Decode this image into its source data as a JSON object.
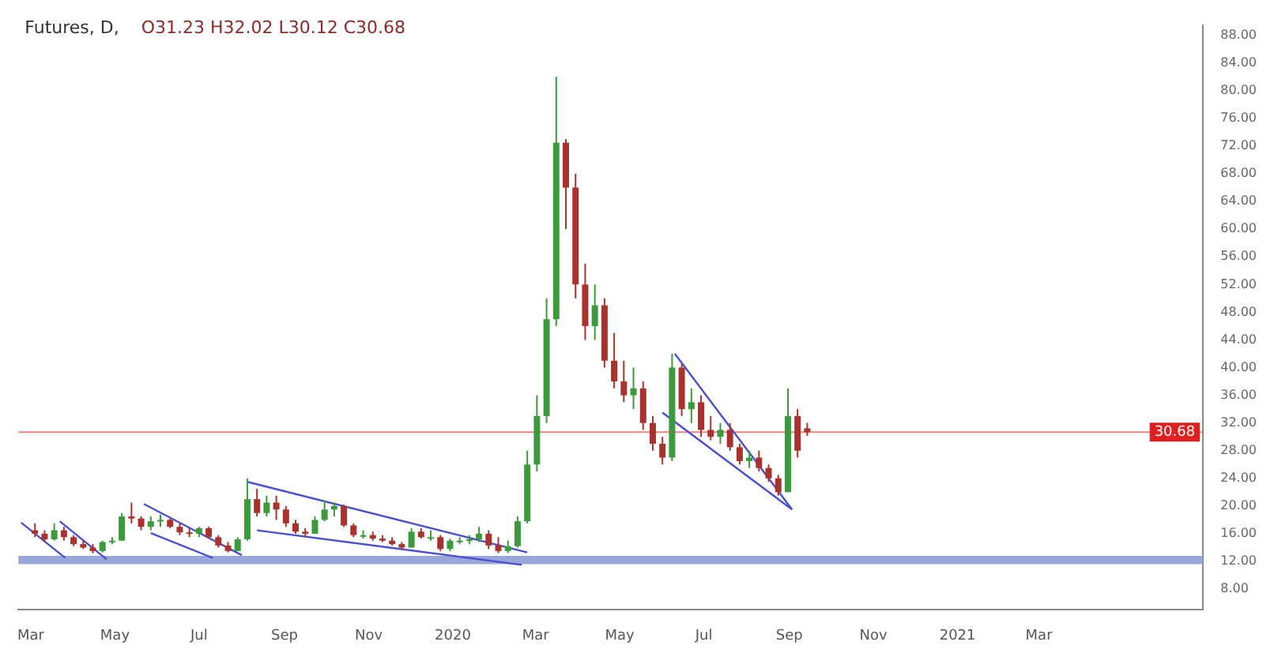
{
  "chart_data": {
    "type": "candlestick",
    "title": "Futures, D,",
    "annotations": [
      "O31.23 H32.02 L30.12 C30.68"
    ],
    "x": [
      "2019-03-04",
      "2019-03-11",
      "2019-03-18",
      "2019-03-25",
      "2019-04-01",
      "2019-04-08",
      "2019-04-15",
      "2019-04-22",
      "2019-04-29",
      "2019-05-06",
      "2019-05-13",
      "2019-05-20",
      "2019-05-27",
      "2019-06-03",
      "2019-06-10",
      "2019-06-17",
      "2019-06-24",
      "2019-07-01",
      "2019-07-08",
      "2019-07-15",
      "2019-07-22",
      "2019-07-29",
      "2019-08-05",
      "2019-08-12",
      "2019-08-19",
      "2019-08-26",
      "2019-09-02",
      "2019-09-09",
      "2019-09-16",
      "2019-09-23",
      "2019-09-30",
      "2019-10-07",
      "2019-10-14",
      "2019-10-21",
      "2019-10-28",
      "2019-11-04",
      "2019-11-11",
      "2019-11-18",
      "2019-11-25",
      "2019-12-02",
      "2019-12-09",
      "2019-12-16",
      "2019-12-23",
      "2019-12-30",
      "2020-01-06",
      "2020-01-13",
      "2020-01-20",
      "2020-01-27",
      "2020-02-03",
      "2020-02-10",
      "2020-02-17",
      "2020-02-24",
      "2020-03-02",
      "2020-03-09",
      "2020-03-16",
      "2020-03-23",
      "2020-03-30",
      "2020-04-06",
      "2020-04-13",
      "2020-04-20",
      "2020-04-27",
      "2020-05-04",
      "2020-05-11",
      "2020-05-18",
      "2020-05-25",
      "2020-06-01",
      "2020-06-08",
      "2020-06-15",
      "2020-06-22",
      "2020-06-29",
      "2020-07-06",
      "2020-07-13",
      "2020-07-20",
      "2020-07-27",
      "2020-08-03",
      "2020-08-10",
      "2020-08-17",
      "2020-08-24",
      "2020-08-31",
      "2020-09-07",
      "2020-09-14"
    ],
    "ohlc": [
      [
        16.5,
        17.5,
        15.5,
        16
      ],
      [
        16,
        16.5,
        14.8,
        15.2
      ],
      [
        15.2,
        17.5,
        15,
        16.5
      ],
      [
        16.5,
        17,
        15,
        15.5
      ],
      [
        15.5,
        15.8,
        14.2,
        14.5
      ],
      [
        14.5,
        15,
        13.8,
        14
      ],
      [
        14,
        14.5,
        13.2,
        13.5
      ],
      [
        13.5,
        15,
        13.3,
        14.8
      ],
      [
        14.8,
        15.5,
        14.5,
        15
      ],
      [
        15,
        19,
        15,
        18.5
      ],
      [
        18.5,
        20.5,
        17.5,
        18.2
      ],
      [
        18.2,
        18.5,
        16.5,
        17
      ],
      [
        17,
        18.5,
        16.5,
        17.8
      ],
      [
        17.8,
        18.8,
        17,
        18
      ],
      [
        18,
        18.2,
        16.8,
        17
      ],
      [
        17,
        17.5,
        15.8,
        16.2
      ],
      [
        16.2,
        16.8,
        15.5,
        16
      ],
      [
        16,
        17,
        15.5,
        16.8
      ],
      [
        16.8,
        17,
        15.3,
        15.5
      ],
      [
        15.5,
        15.8,
        14,
        14.3
      ],
      [
        14.3,
        14.8,
        13.3,
        13.5
      ],
      [
        13.5,
        15.5,
        13.5,
        15.2
      ],
      [
        15.2,
        24,
        15,
        21
      ],
      [
        21,
        22.5,
        18.5,
        19
      ],
      [
        19,
        21.5,
        18.5,
        20.5
      ],
      [
        20.5,
        21.5,
        18,
        19.5
      ],
      [
        19.5,
        20,
        17,
        17.5
      ],
      [
        17.5,
        18,
        16,
        16.3
      ],
      [
        16.3,
        16.8,
        15.5,
        16
      ],
      [
        16,
        18.5,
        16,
        18
      ],
      [
        18,
        20.8,
        17.8,
        19.5
      ],
      [
        19.5,
        20.5,
        18.5,
        20
      ],
      [
        20,
        20.2,
        17,
        17.2
      ],
      [
        17.2,
        17.5,
        15.5,
        15.8
      ],
      [
        15.8,
        16.5,
        15.3,
        15.8
      ],
      [
        15.8,
        16.3,
        15,
        15.3
      ],
      [
        15.3,
        15.8,
        14.8,
        15
      ],
      [
        15,
        15.5,
        14.3,
        14.5
      ],
      [
        14.5,
        14.8,
        13.8,
        14
      ],
      [
        14,
        16.8,
        14,
        16.3
      ],
      [
        16.3,
        16.8,
        15.3,
        15.5
      ],
      [
        15.5,
        16.5,
        15,
        15.5
      ],
      [
        15.5,
        15.8,
        13.5,
        13.8
      ],
      [
        13.8,
        15.3,
        13.5,
        15
      ],
      [
        15,
        15.5,
        14.5,
        15
      ],
      [
        15,
        15.8,
        14.5,
        15.2
      ],
      [
        15.2,
        17,
        14.8,
        16
      ],
      [
        16,
        16.5,
        13.8,
        14.3
      ],
      [
        14.3,
        15.5,
        13.2,
        13.5
      ],
      [
        13.5,
        15,
        13.2,
        14.2
      ],
      [
        14.2,
        18.5,
        14,
        17.8
      ],
      [
        17.8,
        28,
        17.5,
        26
      ],
      [
        26,
        36,
        25,
        33
      ],
      [
        33,
        50,
        32,
        47
      ],
      [
        47,
        82,
        46,
        72.5
      ],
      [
        72.5,
        73,
        60,
        66
      ],
      [
        66,
        68,
        50,
        52
      ],
      [
        52,
        55,
        44,
        46
      ],
      [
        46,
        52,
        44,
        49
      ],
      [
        49,
        50,
        40,
        41
      ],
      [
        41,
        45,
        37,
        38
      ],
      [
        38,
        41,
        35,
        36
      ],
      [
        36,
        40,
        34,
        37
      ],
      [
        37,
        38,
        31,
        32
      ],
      [
        32,
        33,
        28,
        29
      ],
      [
        29,
        30,
        26,
        27
      ],
      [
        27,
        42,
        26.5,
        40
      ],
      [
        40,
        40.5,
        33,
        34
      ],
      [
        34,
        37,
        32,
        35
      ],
      [
        35,
        36,
        30,
        31
      ],
      [
        31,
        33,
        29.5,
        30
      ],
      [
        30,
        32,
        29,
        31
      ],
      [
        31,
        32,
        28,
        28.5
      ],
      [
        28.5,
        29,
        26,
        26.5
      ],
      [
        26.5,
        28,
        25.5,
        27
      ],
      [
        27,
        28,
        25,
        25.5
      ],
      [
        25.5,
        26,
        23.5,
        24
      ],
      [
        24,
        24.5,
        21.5,
        22
      ],
      [
        22,
        37,
        22,
        33
      ],
      [
        33,
        34,
        27,
        28
      ],
      [
        31.23,
        32.02,
        30.12,
        30.68
      ]
    ],
    "series": [
      {
        "type": "line",
        "color": "#4a4fd0",
        "x": [
          "2019-02-22",
          "2019-03-26"
        ],
        "values": [
          17.6,
          12.5
        ]
      },
      {
        "type": "line",
        "color": "#4a4fd0",
        "x": [
          "2019-03-22",
          "2019-04-25"
        ],
        "values": [
          17.8,
          12.3
        ]
      },
      {
        "type": "line",
        "color": "#4a4fd0",
        "x": [
          "2019-05-22",
          "2019-08-01"
        ],
        "values": [
          20.3,
          12.9
        ]
      },
      {
        "type": "line",
        "color": "#4a4fd0",
        "x": [
          "2019-05-27",
          "2019-07-11"
        ],
        "values": [
          16.1,
          12.5
        ]
      },
      {
        "type": "line",
        "color": "#4a4fd0",
        "x": [
          "2019-08-05",
          "2020-02-24"
        ],
        "values": [
          23.5,
          13.3
        ]
      },
      {
        "type": "line",
        "color": "#4a4fd0",
        "x": [
          "2019-08-12",
          "2020-02-20"
        ],
        "values": [
          16.5,
          11.5
        ]
      },
      {
        "type": "line",
        "color": "#4a4fd0",
        "x": [
          "2020-06-10",
          "2020-09-03"
        ],
        "values": [
          42,
          19.5
        ]
      },
      {
        "type": "line",
        "color": "#4a4fd0",
        "x": [
          "2020-06-01",
          "2020-09-03"
        ],
        "values": [
          33.5,
          19.5
        ]
      }
    ],
    "bands": [
      {
        "axis": "y",
        "from": 11.6,
        "to": 12.8,
        "color": "#8e9fd6"
      }
    ],
    "ref_lines": [
      {
        "axis": "y",
        "value": 30.68,
        "label": "30.68",
        "color": "#f08080"
      }
    ],
    "xlim": [
      "2019-02-20",
      "2021-06-28"
    ],
    "xticks": [
      {
        "value": "2019-03",
        "label": "Mar"
      },
      {
        "value": "2019-05",
        "label": "May"
      },
      {
        "value": "2019-07",
        "label": "Jul"
      },
      {
        "value": "2019-09",
        "label": "Sep"
      },
      {
        "value": "2019-11",
        "label": "Nov"
      },
      {
        "value": "2020-01",
        "label": "2020"
      },
      {
        "value": "2020-03",
        "label": "Mar"
      },
      {
        "value": "2020-05",
        "label": "May"
      },
      {
        "value": "2020-07",
        "label": "Jul"
      },
      {
        "value": "2020-09",
        "label": "Sep"
      },
      {
        "value": "2020-11",
        "label": "Nov"
      },
      {
        "value": "2021-01",
        "label": "2021"
      },
      {
        "value": "2021-03",
        "label": "Mar"
      }
    ],
    "ylim": [
      5,
      89.5
    ],
    "yticks": [
      {
        "value": 8,
        "label": "8.00"
      },
      {
        "value": 12,
        "label": "12.00"
      },
      {
        "value": 16,
        "label": "16.00"
      },
      {
        "value": 20,
        "label": "20.00"
      },
      {
        "value": 24,
        "label": "24.00"
      },
      {
        "value": 28,
        "label": "28.00"
      },
      {
        "value": 32,
        "label": "32.00"
      },
      {
        "value": 36,
        "label": "36.00"
      },
      {
        "value": 40,
        "label": "40.00"
      },
      {
        "value": 44,
        "label": "44.00"
      },
      {
        "value": 48,
        "label": "48.00"
      },
      {
        "value": 52,
        "label": "52.00"
      },
      {
        "value": 56,
        "label": "56.00"
      },
      {
        "value": 60,
        "label": "60.00"
      },
      {
        "value": 64,
        "label": "64.00"
      },
      {
        "value": 68,
        "label": "68.00"
      },
      {
        "value": 72,
        "label": "72.00"
      },
      {
        "value": 76,
        "label": "76.00"
      },
      {
        "value": 80,
        "label": "80.00"
      },
      {
        "value": 84,
        "label": "84.00"
      },
      {
        "value": 88,
        "label": "88.00"
      }
    ],
    "grid": false,
    "legend": false,
    "marker": "none",
    "line_style": "solid"
  }
}
